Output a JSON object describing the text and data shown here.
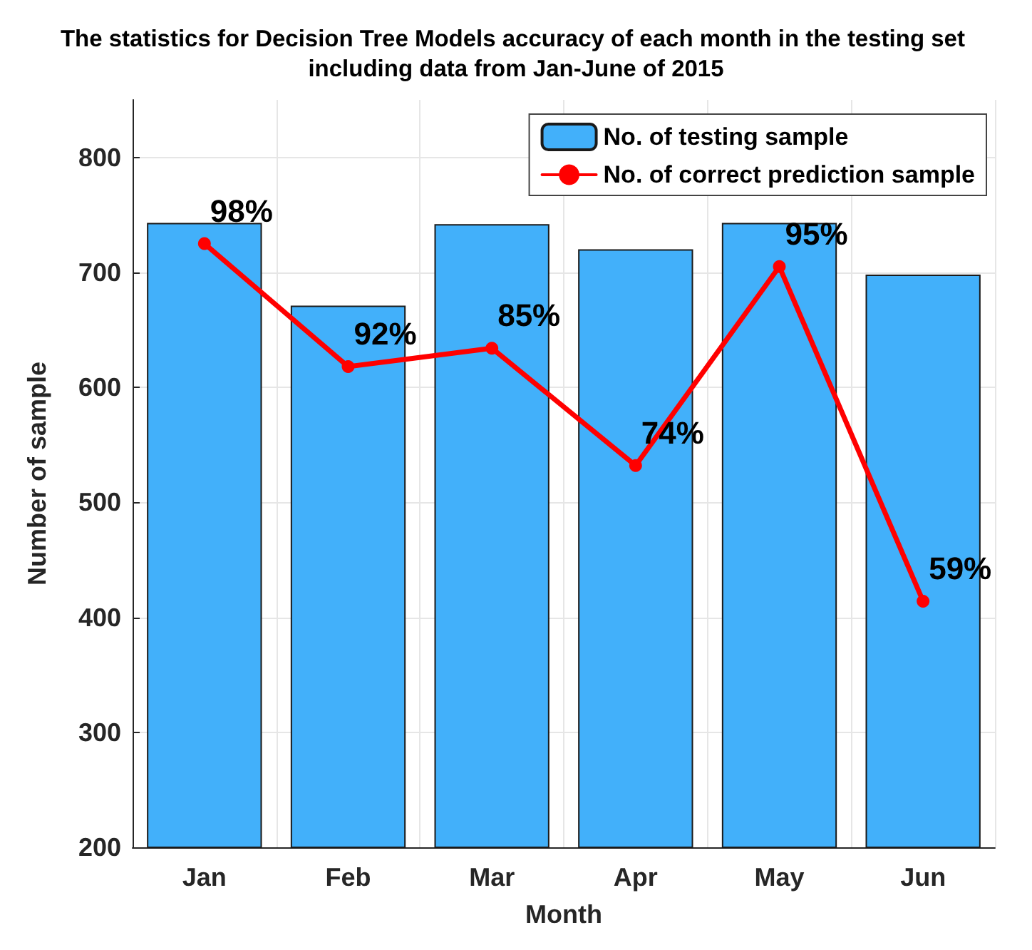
{
  "chart_data": {
    "type": "bar",
    "title": "The statistics for Decision Tree Models accuracy of each month in the testing set including data from Jan-June of 2015",
    "xlabel": "Month",
    "ylabel": "Number of sample",
    "categories": [
      "Jan",
      "Feb",
      "Mar",
      "Apr",
      "May",
      "Jun"
    ],
    "series": [
      {
        "name": "No. of testing sample",
        "color": "#42b0fa",
        "values": [
          743,
          671,
          742,
          720,
          743,
          698
        ]
      },
      {
        "name": "No. of correct prediction sample",
        "type": "line",
        "color": "#ff0000",
        "values": [
          725,
          618,
          634,
          532,
          705,
          414
        ]
      }
    ],
    "annotations": [
      {
        "text": "98%",
        "x": "Jan",
        "y": 725
      },
      {
        "text": "92%",
        "x": "Feb",
        "y": 618
      },
      {
        "text": "85%",
        "x": "Mar",
        "y": 634
      },
      {
        "text": "74%",
        "x": "Apr",
        "y": 532
      },
      {
        "text": "95%",
        "x": "May",
        "y": 705
      },
      {
        "text": "59%",
        "x": "Jun",
        "y": 414
      }
    ],
    "ylim": [
      200,
      850
    ],
    "yticks": [
      200,
      300,
      400,
      500,
      600,
      700,
      800
    ],
    "grid": true,
    "legend": "top right",
    "marker": "circle",
    "line_style": "solid"
  }
}
